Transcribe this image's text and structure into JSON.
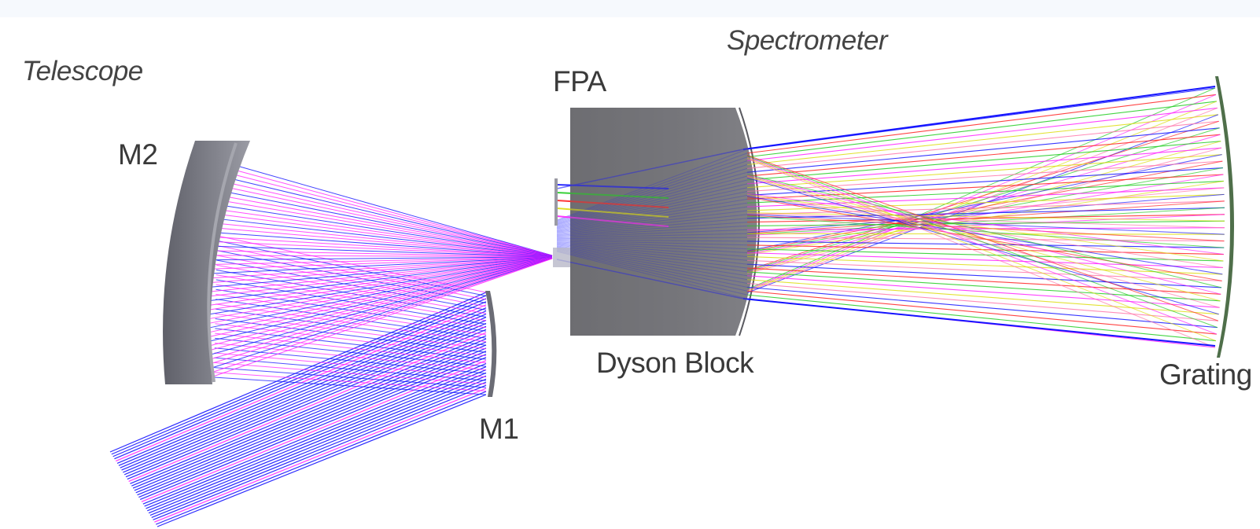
{
  "labels": {
    "spectrometer": "Spectrometer",
    "telescope": "Telescope",
    "fpa": "FPA",
    "m2": "M2",
    "m1": "M1",
    "dyson_block": "Dyson Block",
    "grating": "Grating"
  },
  "colors": {
    "mirror": "#6b6c75",
    "mirror_light": "#8c8d96",
    "dyson_block": "#6f6f74",
    "grating": "#4f6f4a",
    "ray_blue": "#1414ff",
    "ray_magenta": "#ff22ff",
    "ray_green": "#22cc22",
    "ray_red": "#ff2222",
    "ray_yellow": "#dddd11",
    "ray_pink": "#ff77aa"
  },
  "icons": {
    "m2_mirror": "curved-mirror-icon",
    "m1_mirror": "curved-mirror-icon",
    "grating": "curved-grating-icon",
    "dyson_block": "lens-block-icon"
  }
}
